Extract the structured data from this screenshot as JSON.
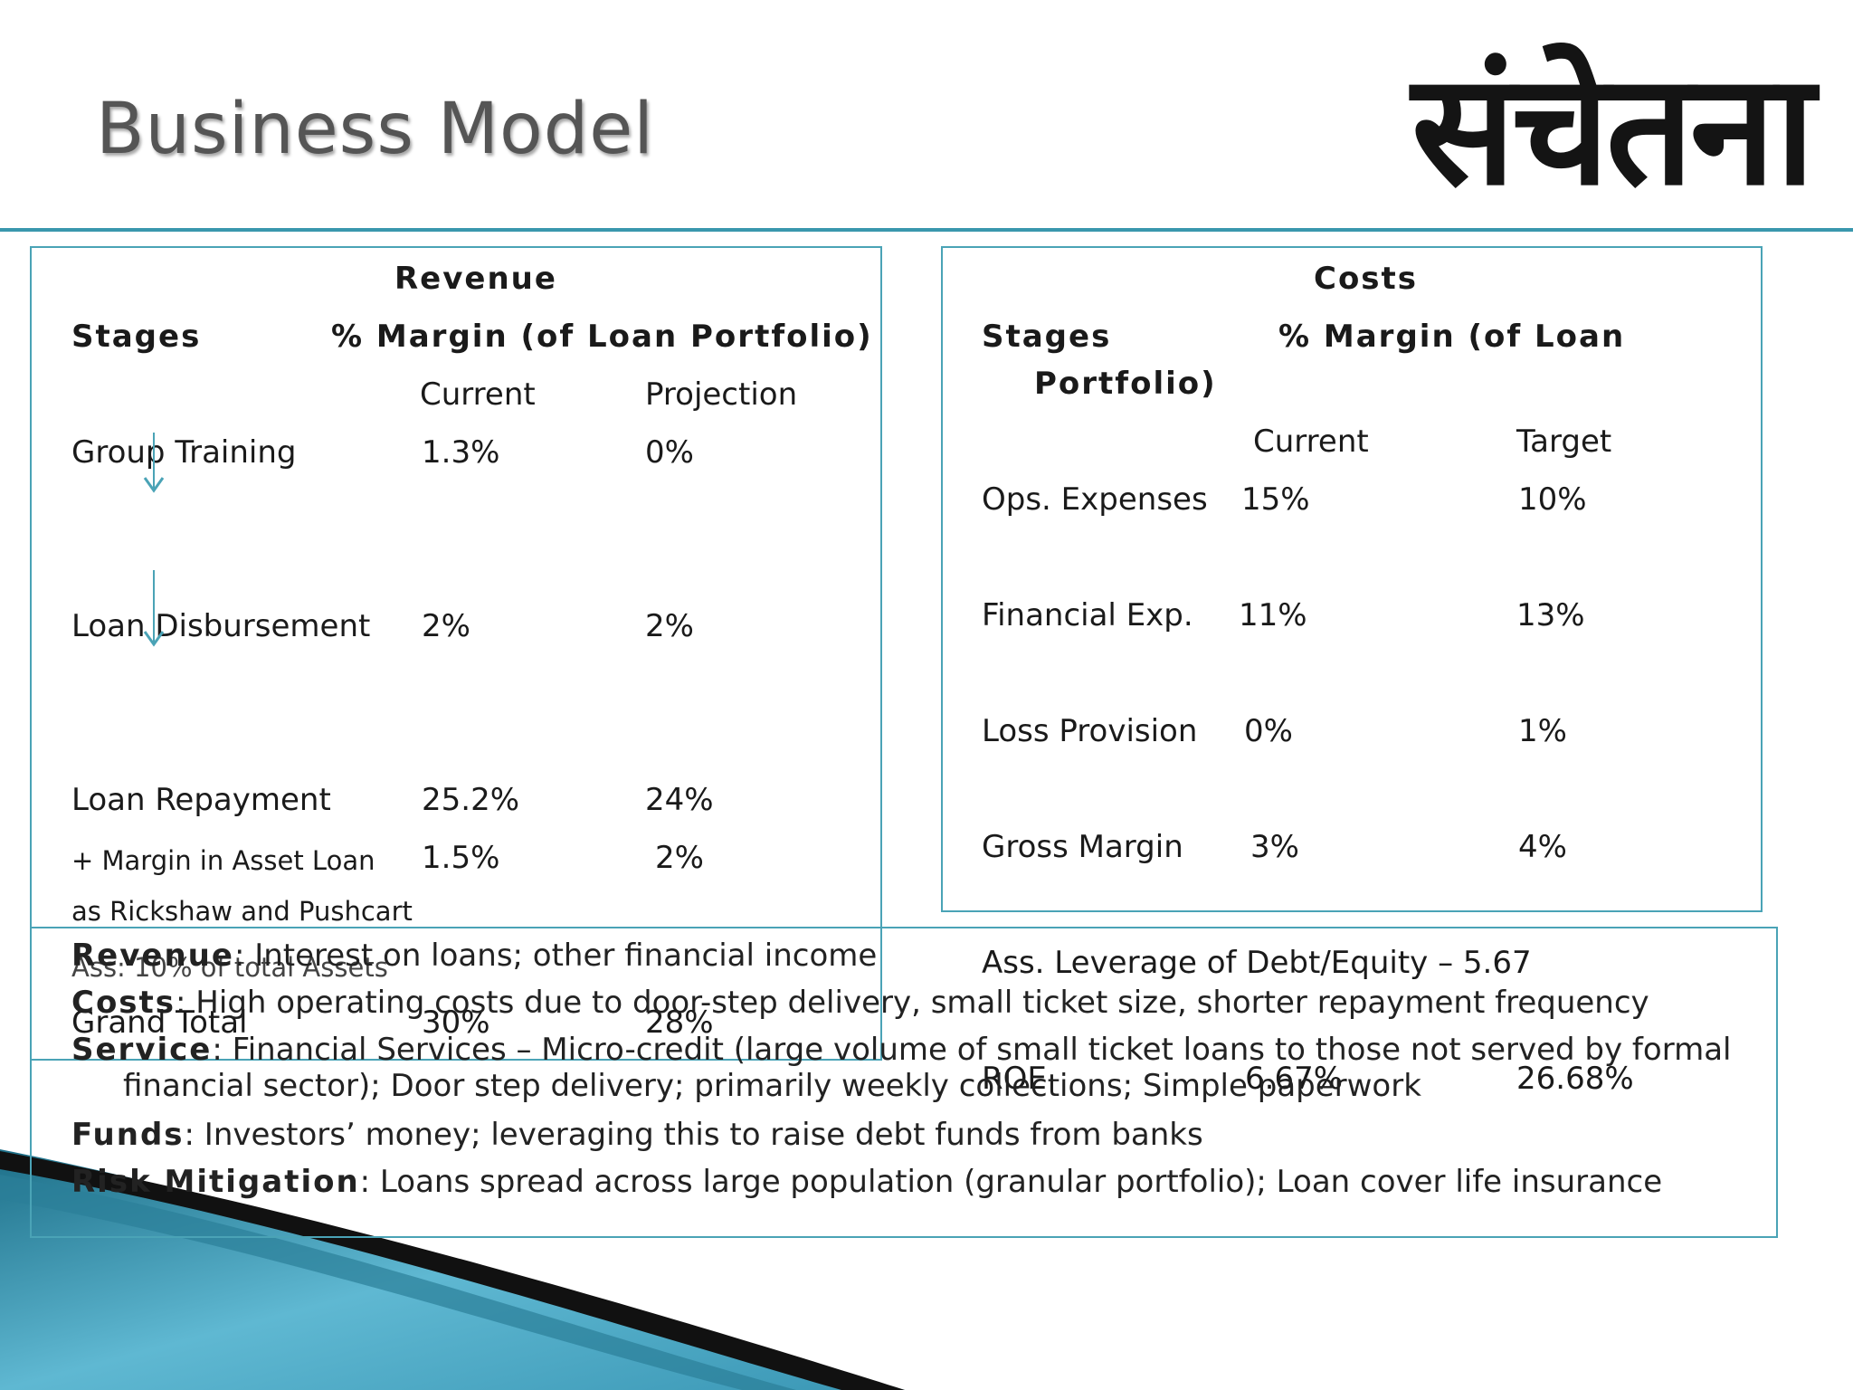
{
  "title": "Business Model",
  "logo_text": "संचेतना",
  "revenue": {
    "heading": "Revenue",
    "stages_label": "Stages",
    "margin_label": "% Margin (of Loan Portfolio)",
    "col_current": "Current",
    "col_projection": "Projection",
    "rows": [
      {
        "stage": "Group Training",
        "current": "1.3%",
        "projection": "0%"
      },
      {
        "stage": "Loan Disbursement",
        "current": "2%",
        "projection": "2%"
      },
      {
        "stage": "Loan Repayment",
        "current": "25.2%",
        "projection": "24%"
      },
      {
        "stage": "+ Margin in Asset Loan",
        "current": "1.5%",
        "projection": "2%"
      }
    ],
    "asset_loan_note": "as Rickshaw and Pushcart",
    "assumption": "Ass: 10% of total Assets",
    "grand_total_label": "Grand Total",
    "grand_total_current": "30%",
    "grand_total_projection": "28%"
  },
  "costs": {
    "heading": "Costs",
    "stages_label": "Stages",
    "margin_label_1": "% Margin (of Loan",
    "margin_label_2": "Portfolio)",
    "col_current": "Current",
    "col_target": "Target",
    "rows": [
      {
        "stage": "Ops.  Expenses",
        "current": "15%",
        "target": "10%"
      },
      {
        "stage": "Financial Exp.",
        "current": "11%",
        "target": "13%"
      },
      {
        "stage": "Loss Provision",
        "current": "0%",
        "target": "1%"
      },
      {
        "stage": "Gross Margin",
        "current": "3%",
        "target": "4%"
      }
    ],
    "leverage": "Ass. Leverage of Debt/Equity – 5.67",
    "roe_label": "ROE",
    "roe_current": "6.67%",
    "roe_target": "26.68%"
  },
  "summary": {
    "revenue_label": "Revenue",
    "revenue_text": ": Interest on loans; other financial income",
    "costs_label": "Costs",
    "costs_text": ": High operating costs due to door-step delivery, small ticket size, shorter repayment frequency",
    "service_label": "Service",
    "service_text": ": Financial Services – Micro-credit (large volume of small ticket loans to those not served by formal",
    "service_text_2": "financial sector); Door step delivery; primarily weekly collections; Simple paperwork",
    "funds_label": "Funds",
    "funds_text": ": Investors’ money; leveraging this to raise debt funds from banks",
    "risk_label": "Risk Mitigation",
    "risk_text": ": Loans spread across large population (granular portfolio); Loan cover life insurance"
  },
  "colors": {
    "accent": "#3a97ad",
    "box_border": "#4aa3b6"
  }
}
